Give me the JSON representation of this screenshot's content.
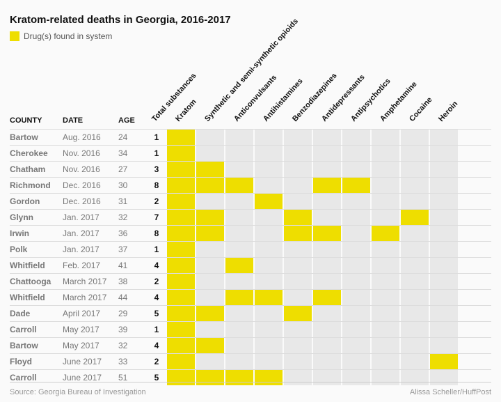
{
  "title": "Kratom-related deaths in Georgia, 2016-2017",
  "legend_label": "Drug(s) found in system",
  "highlight_color": "#eede00",
  "cell_off_color": "#e8e8e8",
  "background_color": "#fafafa",
  "border_color": "#dddddd",
  "text_color_primary": "#111111",
  "text_color_secondary": "#777777",
  "text_color_footer": "#999999",
  "header_rotation_deg": -48,
  "fixed_headers": {
    "county": "COUNTY",
    "date": "DATE",
    "age": "AGE",
    "total": "Total substances"
  },
  "drug_columns": [
    "Kratom",
    "Synthetic and semi-synthetic opioids",
    "Anticonvulsants",
    "Antihistamines",
    "Benzodiazepines",
    "Antidepressants",
    "Antipsychotics",
    "Amphetamine",
    "Cocaine",
    "Heroin"
  ],
  "rows": [
    {
      "county": "Bartow",
      "date": "Aug. 2016",
      "age": 24,
      "total": 1,
      "drugs": [
        1,
        0,
        0,
        0,
        0,
        0,
        0,
        0,
        0,
        0
      ]
    },
    {
      "county": "Cherokee",
      "date": "Nov. 2016",
      "age": 34,
      "total": 1,
      "drugs": [
        1,
        0,
        0,
        0,
        0,
        0,
        0,
        0,
        0,
        0
      ]
    },
    {
      "county": "Chatham",
      "date": "Nov. 2016",
      "age": 27,
      "total": 3,
      "drugs": [
        1,
        1,
        0,
        0,
        0,
        0,
        0,
        0,
        0,
        0
      ]
    },
    {
      "county": "Richmond",
      "date": "Dec. 2016",
      "age": 30,
      "total": 8,
      "drugs": [
        1,
        1,
        1,
        0,
        0,
        1,
        1,
        0,
        0,
        0
      ]
    },
    {
      "county": "Gordon",
      "date": "Dec. 2016",
      "age": 31,
      "total": 2,
      "drugs": [
        1,
        0,
        0,
        1,
        0,
        0,
        0,
        0,
        0,
        0
      ]
    },
    {
      "county": "Glynn",
      "date": "Jan. 2017",
      "age": 32,
      "total": 7,
      "drugs": [
        1,
        1,
        0,
        0,
        1,
        0,
        0,
        0,
        1,
        0
      ]
    },
    {
      "county": "Irwin",
      "date": "Jan. 2017",
      "age": 36,
      "total": 8,
      "drugs": [
        1,
        1,
        0,
        0,
        1,
        1,
        0,
        1,
        0,
        0
      ]
    },
    {
      "county": "Polk",
      "date": "Jan. 2017",
      "age": 37,
      "total": 1,
      "drugs": [
        1,
        0,
        0,
        0,
        0,
        0,
        0,
        0,
        0,
        0
      ]
    },
    {
      "county": "Whitfield",
      "date": "Feb. 2017",
      "age": 41,
      "total": 4,
      "drugs": [
        1,
        0,
        1,
        0,
        0,
        0,
        0,
        0,
        0,
        0
      ]
    },
    {
      "county": "Chattooga",
      "date": "March 2017",
      "age": 38,
      "total": 2,
      "drugs": [
        1,
        0,
        0,
        0,
        0,
        0,
        0,
        0,
        0,
        0
      ]
    },
    {
      "county": "Whitfield",
      "date": "March 2017",
      "age": 44,
      "total": 4,
      "drugs": [
        1,
        0,
        1,
        1,
        0,
        1,
        0,
        0,
        0,
        0
      ]
    },
    {
      "county": "Dade",
      "date": "April 2017",
      "age": 29,
      "total": 5,
      "drugs": [
        1,
        1,
        0,
        0,
        1,
        0,
        0,
        0,
        0,
        0
      ]
    },
    {
      "county": "Carroll",
      "date": "May 2017",
      "age": 39,
      "total": 1,
      "drugs": [
        1,
        0,
        0,
        0,
        0,
        0,
        0,
        0,
        0,
        0
      ]
    },
    {
      "county": "Bartow",
      "date": "May 2017",
      "age": 32,
      "total": 4,
      "drugs": [
        1,
        1,
        0,
        0,
        0,
        0,
        0,
        0,
        0,
        0
      ]
    },
    {
      "county": "Floyd",
      "date": "June 2017",
      "age": 33,
      "total": 2,
      "drugs": [
        1,
        0,
        0,
        0,
        0,
        0,
        0,
        0,
        0,
        1
      ]
    },
    {
      "county": "Carroll",
      "date": "June 2017",
      "age": 51,
      "total": 5,
      "drugs": [
        1,
        1,
        1,
        1,
        0,
        0,
        0,
        0,
        0,
        0
      ]
    }
  ],
  "source": "Source: Georgia Bureau of Investigation",
  "credit": "Alissa Scheller/HuffPost"
}
